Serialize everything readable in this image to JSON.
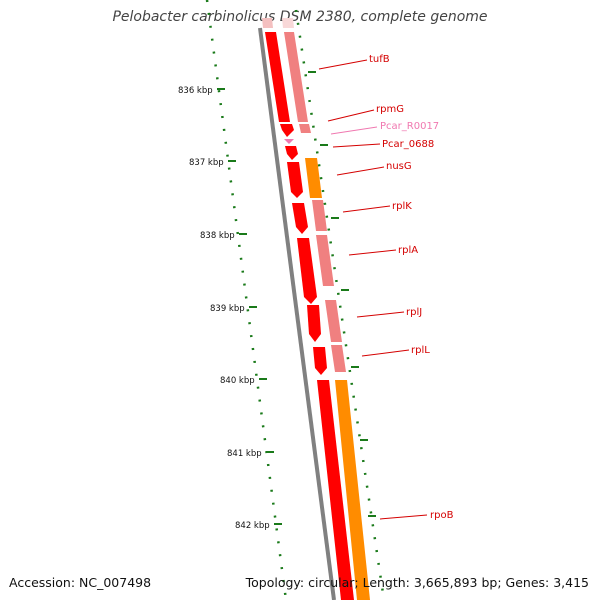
{
  "title": "Pelobacter carbinolicus DSM 2380, complete genome",
  "accession": "Accession: NC_007498",
  "summary": "Topology: circular; Length: 3,665,893 bp; Genes: 3,415",
  "ruler": [
    {
      "label": "836 kbp"
    },
    {
      "label": "837 kbp"
    },
    {
      "label": "838 kbp"
    },
    {
      "label": "839 kbp"
    },
    {
      "label": "840 kbp"
    },
    {
      "label": "841 kbp"
    },
    {
      "label": "842 kbp"
    }
  ],
  "genes": [
    {
      "name": "tufB",
      "color": "#d40000"
    },
    {
      "name": "rpmG",
      "color": "#d40000"
    },
    {
      "name": "Pcar_R0017",
      "color": "#f078b0"
    },
    {
      "name": "Pcar_0688",
      "color": "#d40000"
    },
    {
      "name": "nusG",
      "color": "#d40000"
    },
    {
      "name": "rplK",
      "color": "#d40000"
    },
    {
      "name": "rplA",
      "color": "#d40000"
    },
    {
      "name": "rplJ",
      "color": "#d40000"
    },
    {
      "name": "rplL",
      "color": "#d40000"
    },
    {
      "name": "rpoB",
      "color": "#d40000"
    }
  ],
  "colors": {
    "cds": "#ff0000",
    "cds_light": "#f08080",
    "orange": "#ff8c00",
    "backbone": "#808080",
    "gc": "#1a7a1a"
  }
}
